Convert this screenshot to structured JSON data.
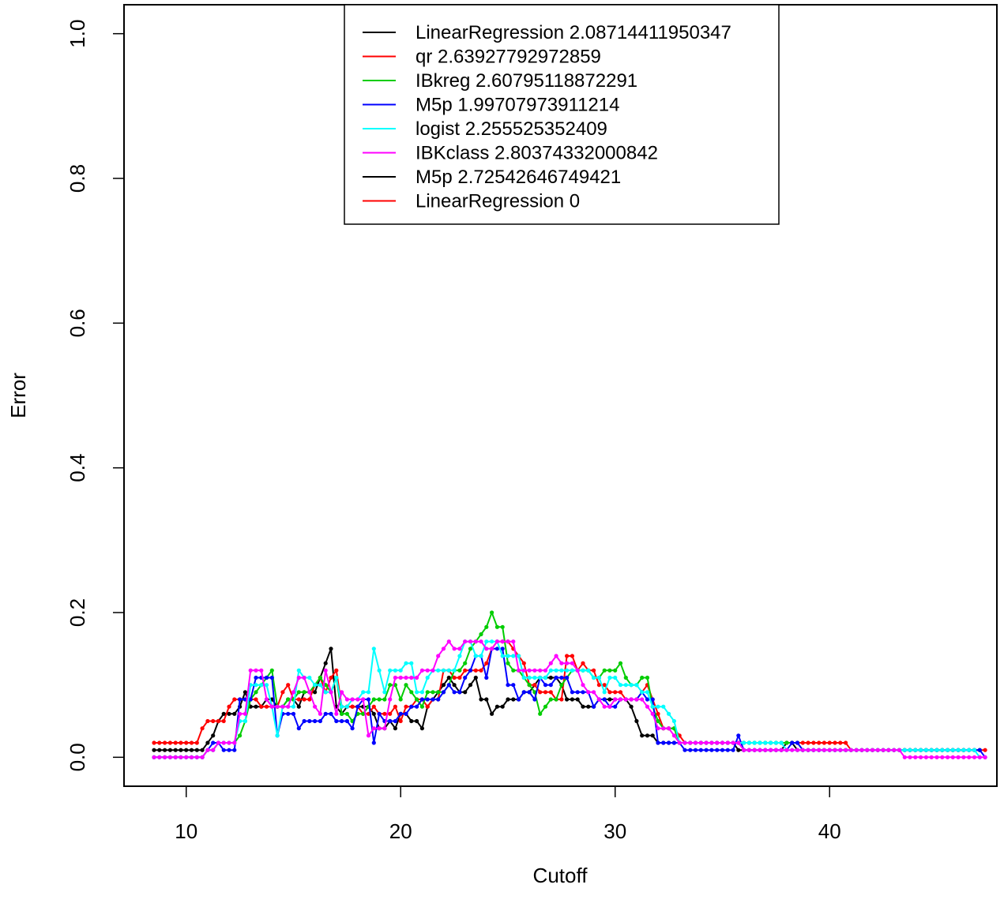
{
  "chart_data": {
    "type": "line",
    "title": "",
    "xlabel": "Cutoff",
    "ylabel": "Error",
    "xlim": [
      7.1,
      47.8
    ],
    "ylim": [
      -0.04,
      1.04
    ],
    "xticks": [
      10,
      20,
      30,
      40
    ],
    "xtick_labels": [
      "10",
      "20",
      "30",
      "40"
    ],
    "yticks": [
      0.0,
      0.2,
      0.4,
      0.6,
      0.8,
      1.0
    ],
    "ytick_labels": [
      "0.0",
      "0.2",
      "0.4",
      "0.6",
      "0.8",
      "1.0"
    ],
    "grid": false,
    "legend_position": "top-center",
    "x_start": 8.5,
    "x_step": 0.25,
    "series": [
      {
        "name": "LinearRegression 2.08714411950347",
        "color": "#000000",
        "values": [
          0.01,
          0.01,
          0.01,
          0.01,
          0.01,
          0.01,
          0.01,
          0.01,
          0.01,
          0.01,
          0.02,
          0.03,
          0.05,
          0.06,
          0.06,
          0.06,
          0.07,
          0.09,
          0.07,
          0.07,
          0.07,
          0.08,
          0.08,
          0.07,
          0.07,
          0.08,
          0.08,
          0.07,
          0.09,
          0.09,
          0.09,
          0.11,
          0.13,
          0.15,
          0.07,
          0.06,
          0.07,
          0.07,
          0.07,
          0.07,
          0.07,
          0.06,
          0.04,
          0.04,
          0.05,
          0.04,
          0.06,
          0.06,
          0.05,
          0.05,
          0.04,
          0.07,
          0.08,
          0.09,
          0.1,
          0.11,
          0.1,
          0.09,
          0.09,
          0.1,
          0.11,
          0.08,
          0.08,
          0.06,
          0.07,
          0.07,
          0.08,
          0.08,
          0.08,
          0.09,
          0.09,
          0.1,
          0.11,
          0.11,
          0.11,
          0.11,
          0.1,
          0.08,
          0.08,
          0.08,
          0.07,
          0.07,
          0.07,
          0.08,
          0.08,
          0.08,
          0.08,
          0.08,
          0.08,
          0.07,
          0.05,
          0.03,
          0.03,
          0.03,
          0.02,
          0.02,
          0.02,
          0.02,
          0.02,
          0.02,
          0.02,
          0.02,
          0.02,
          0.02,
          0.02,
          0.02,
          0.02,
          0.02,
          0.02,
          0.01,
          0.01,
          0.01,
          0.01,
          0.01,
          0.01,
          0.01,
          0.01,
          0.01,
          0.02,
          0.02,
          0.01,
          0.01,
          0.01,
          0.01,
          0.01,
          0.01,
          0.01,
          0.01,
          0.01,
          0.01,
          0.01,
          0.01,
          0.01,
          0.01,
          0.01,
          0.01,
          0.01,
          0.01,
          0.01,
          0.01,
          0.01,
          0.01,
          0.01,
          0.01,
          0.01,
          0.01,
          0.01,
          0.01,
          0.01,
          0.01,
          0.01,
          0.01,
          0.01,
          0.01,
          0.01
        ]
      },
      {
        "name": "qr 2.63927792972859",
        "color": "#ff0000",
        "values": [
          0.02,
          0.02,
          0.02,
          0.02,
          0.02,
          0.02,
          0.02,
          0.02,
          0.02,
          0.04,
          0.05,
          0.05,
          0.05,
          0.05,
          0.07,
          0.08,
          0.08,
          0.08,
          0.08,
          0.08,
          0.07,
          0.07,
          0.07,
          0.07,
          0.09,
          0.1,
          0.08,
          0.08,
          0.08,
          0.08,
          0.1,
          0.11,
          0.09,
          0.11,
          0.12,
          0.07,
          0.07,
          0.07,
          0.07,
          0.06,
          0.06,
          0.07,
          0.06,
          0.06,
          0.06,
          0.07,
          0.05,
          0.07,
          0.07,
          0.08,
          0.08,
          0.07,
          0.08,
          0.08,
          0.12,
          0.12,
          0.11,
          0.11,
          0.12,
          0.12,
          0.12,
          0.12,
          0.13,
          0.15,
          0.16,
          0.16,
          0.16,
          0.15,
          0.14,
          0.13,
          0.1,
          0.1,
          0.09,
          0.09,
          0.09,
          0.08,
          0.08,
          0.14,
          0.14,
          0.12,
          0.13,
          0.12,
          0.12,
          0.1,
          0.1,
          0.09,
          0.09,
          0.09,
          0.08,
          0.08,
          0.08,
          0.09,
          0.1,
          0.08,
          0.06,
          0.04,
          0.04,
          0.04,
          0.03,
          0.02,
          0.02,
          0.02,
          0.02,
          0.02,
          0.02,
          0.02,
          0.02,
          0.02,
          0.02,
          0.02,
          0.02,
          0.02,
          0.02,
          0.02,
          0.02,
          0.02,
          0.02,
          0.02,
          0.02,
          0.02,
          0.02,
          0.02,
          0.02,
          0.02,
          0.02,
          0.02,
          0.02,
          0.02,
          0.02,
          0.02,
          0.01,
          0.01,
          0.01,
          0.01,
          0.01,
          0.01,
          0.01,
          0.01,
          0.01,
          0.01,
          0.01,
          0.01,
          0.01,
          0.01,
          0.01,
          0.01,
          0.01,
          0.01,
          0.01,
          0.01,
          0.01,
          0.01,
          0.01,
          0.01,
          0.01,
          0.01
        ]
      },
      {
        "name": "IBkreg 2.60795118872291",
        "color": "#00cd00",
        "values": [
          0.0,
          0.0,
          0.0,
          0.0,
          0.0,
          0.0,
          0.0,
          0.0,
          0.0,
          0.0,
          0.01,
          0.01,
          0.02,
          0.02,
          0.02,
          0.02,
          0.03,
          0.05,
          0.08,
          0.09,
          0.1,
          0.11,
          0.12,
          0.07,
          0.07,
          0.08,
          0.08,
          0.09,
          0.09,
          0.09,
          0.1,
          0.11,
          0.1,
          0.09,
          0.11,
          0.06,
          0.06,
          0.05,
          0.06,
          0.06,
          0.07,
          0.08,
          0.08,
          0.08,
          0.1,
          0.1,
          0.08,
          0.1,
          0.09,
          0.08,
          0.07,
          0.09,
          0.09,
          0.09,
          0.09,
          0.1,
          0.12,
          0.12,
          0.13,
          0.15,
          0.16,
          0.17,
          0.18,
          0.2,
          0.18,
          0.18,
          0.13,
          0.12,
          0.12,
          0.11,
          0.1,
          0.09,
          0.06,
          0.07,
          0.08,
          0.08,
          0.1,
          0.11,
          0.12,
          0.12,
          0.12,
          0.12,
          0.11,
          0.11,
          0.12,
          0.12,
          0.12,
          0.13,
          0.11,
          0.1,
          0.1,
          0.11,
          0.11,
          0.07,
          0.05,
          0.04,
          0.04,
          0.04,
          0.02,
          0.02,
          0.02,
          0.02,
          0.02,
          0.02,
          0.02,
          0.02,
          0.02,
          0.02,
          0.02,
          0.02,
          0.02,
          0.02,
          0.02,
          0.02,
          0.02,
          0.02,
          0.02,
          0.02,
          0.02,
          0.02,
          0.02,
          0.01,
          0.01,
          0.01,
          0.01,
          0.01,
          0.01,
          0.01,
          0.01,
          0.01,
          0.01,
          0.01,
          0.01,
          0.01,
          0.01,
          0.01,
          0.01,
          0.01,
          0.01,
          0.01,
          0.01,
          0.01,
          0.01,
          0.01,
          0.01,
          0.01,
          0.01,
          0.01,
          0.01,
          0.01,
          0.01,
          0.01,
          0.01,
          0.01,
          0.01
        ]
      },
      {
        "name": "M5p 1.99707973911214",
        "color": "#0000ff",
        "values": [
          0.0,
          0.0,
          0.0,
          0.0,
          0.0,
          0.0,
          0.0,
          0.0,
          0.0,
          0.0,
          0.01,
          0.02,
          0.02,
          0.01,
          0.01,
          0.01,
          0.08,
          0.08,
          0.08,
          0.11,
          0.11,
          0.11,
          0.11,
          0.03,
          0.06,
          0.06,
          0.06,
          0.04,
          0.05,
          0.05,
          0.05,
          0.05,
          0.06,
          0.06,
          0.05,
          0.05,
          0.05,
          0.04,
          0.07,
          0.08,
          0.08,
          0.02,
          0.06,
          0.05,
          0.05,
          0.05,
          0.06,
          0.06,
          0.07,
          0.07,
          0.08,
          0.08,
          0.08,
          0.08,
          0.09,
          0.1,
          0.09,
          0.09,
          0.11,
          0.12,
          0.14,
          0.14,
          0.11,
          0.15,
          0.15,
          0.15,
          0.1,
          0.1,
          0.08,
          0.09,
          0.09,
          0.08,
          0.11,
          0.1,
          0.1,
          0.11,
          0.11,
          0.11,
          0.09,
          0.09,
          0.09,
          0.09,
          0.07,
          0.08,
          0.08,
          0.07,
          0.07,
          0.08,
          0.08,
          0.08,
          0.08,
          0.09,
          0.08,
          0.08,
          0.02,
          0.02,
          0.02,
          0.02,
          0.02,
          0.01,
          0.01,
          0.01,
          0.01,
          0.01,
          0.01,
          0.01,
          0.01,
          0.01,
          0.01,
          0.03,
          0.01,
          0.01,
          0.01,
          0.01,
          0.01,
          0.01,
          0.01,
          0.01,
          0.01,
          0.02,
          0.02,
          0.01,
          0.01,
          0.01,
          0.01,
          0.01,
          0.01,
          0.01,
          0.01,
          0.01,
          0.01,
          0.01,
          0.01,
          0.01,
          0.01,
          0.01,
          0.01,
          0.01,
          0.01,
          0.01,
          0.01,
          0.01,
          0.01,
          0.01,
          0.01,
          0.01,
          0.01,
          0.01,
          0.01,
          0.01,
          0.01,
          0.01,
          0.01,
          0.01,
          0.01,
          0.0
        ]
      },
      {
        "name": "logist 2.255525352409",
        "color": "#00ffff",
        "values": [
          0.0,
          0.0,
          0.0,
          0.0,
          0.0,
          0.0,
          0.0,
          0.0,
          0.0,
          0.0,
          0.01,
          0.01,
          0.02,
          0.02,
          0.02,
          0.02,
          0.05,
          0.05,
          0.1,
          0.1,
          0.1,
          0.1,
          0.07,
          0.03,
          0.07,
          0.07,
          0.07,
          0.12,
          0.11,
          0.11,
          0.1,
          0.1,
          0.09,
          0.09,
          0.11,
          0.07,
          0.07,
          0.08,
          0.08,
          0.09,
          0.09,
          0.15,
          0.12,
          0.09,
          0.12,
          0.12,
          0.12,
          0.13,
          0.13,
          0.09,
          0.09,
          0.11,
          0.12,
          0.12,
          0.12,
          0.12,
          0.12,
          0.14,
          0.16,
          0.16,
          0.14,
          0.14,
          0.16,
          0.16,
          0.16,
          0.14,
          0.14,
          0.14,
          0.14,
          0.11,
          0.11,
          0.11,
          0.11,
          0.11,
          0.12,
          0.12,
          0.12,
          0.12,
          0.12,
          0.12,
          0.12,
          0.12,
          0.11,
          0.11,
          0.09,
          0.11,
          0.11,
          0.1,
          0.1,
          0.1,
          0.1,
          0.09,
          0.09,
          0.07,
          0.07,
          0.07,
          0.06,
          0.05,
          0.02,
          0.02,
          0.02,
          0.02,
          0.02,
          0.02,
          0.02,
          0.02,
          0.02,
          0.02,
          0.02,
          0.02,
          0.02,
          0.02,
          0.02,
          0.02,
          0.02,
          0.02,
          0.02,
          0.02,
          0.01,
          0.01,
          0.01,
          0.01,
          0.01,
          0.01,
          0.01,
          0.01,
          0.01,
          0.01,
          0.01,
          0.01,
          0.01,
          0.01,
          0.01,
          0.01,
          0.01,
          0.01,
          0.01,
          0.01,
          0.01,
          0.01,
          0.01,
          0.01,
          0.01,
          0.01,
          0.01,
          0.01,
          0.01,
          0.01,
          0.01,
          0.01,
          0.01,
          0.01,
          0.01,
          0.01,
          0.0
        ]
      },
      {
        "name": "IBKclass 2.80374332000842",
        "color": "#ff00ff",
        "values": [
          0.0,
          0.0,
          0.0,
          0.0,
          0.0,
          0.0,
          0.0,
          0.0,
          0.0,
          0.0,
          0.01,
          0.01,
          0.02,
          0.02,
          0.02,
          0.02,
          0.06,
          0.06,
          0.12,
          0.12,
          0.12,
          0.08,
          0.07,
          0.07,
          0.07,
          0.07,
          0.09,
          0.11,
          0.11,
          0.09,
          0.07,
          0.06,
          0.12,
          0.09,
          0.06,
          0.09,
          0.08,
          0.08,
          0.08,
          0.08,
          0.03,
          0.04,
          0.04,
          0.04,
          0.08,
          0.11,
          0.11,
          0.11,
          0.11,
          0.11,
          0.12,
          0.12,
          0.12,
          0.14,
          0.15,
          0.16,
          0.15,
          0.15,
          0.16,
          0.16,
          0.16,
          0.16,
          0.15,
          0.15,
          0.16,
          0.16,
          0.16,
          0.16,
          0.12,
          0.12,
          0.12,
          0.12,
          0.12,
          0.12,
          0.13,
          0.14,
          0.13,
          0.13,
          0.13,
          0.12,
          0.1,
          0.09,
          0.09,
          0.08,
          0.07,
          0.07,
          0.08,
          0.08,
          0.08,
          0.08,
          0.08,
          0.08,
          0.07,
          0.06,
          0.04,
          0.04,
          0.04,
          0.03,
          0.02,
          0.02,
          0.02,
          0.02,
          0.02,
          0.02,
          0.02,
          0.02,
          0.02,
          0.02,
          0.02,
          0.02,
          0.01,
          0.01,
          0.01,
          0.01,
          0.01,
          0.01,
          0.01,
          0.01,
          0.01,
          0.01,
          0.01,
          0.01,
          0.01,
          0.01,
          0.01,
          0.01,
          0.01,
          0.01,
          0.01,
          0.01,
          0.01,
          0.01,
          0.01,
          0.01,
          0.01,
          0.01,
          0.01,
          0.01,
          0.01,
          0.01,
          0.0,
          0.0,
          0.0,
          0.0,
          0.0,
          0.0,
          0.0,
          0.0,
          0.0,
          0.0,
          0.0,
          0.0,
          0.0,
          0.0,
          0.0,
          0.0
        ]
      },
      {
        "name": "M5p 2.72542646749421",
        "color": "#000000",
        "values": []
      },
      {
        "name": "LinearRegression 0",
        "color": "#ff0000",
        "values": []
      }
    ]
  }
}
